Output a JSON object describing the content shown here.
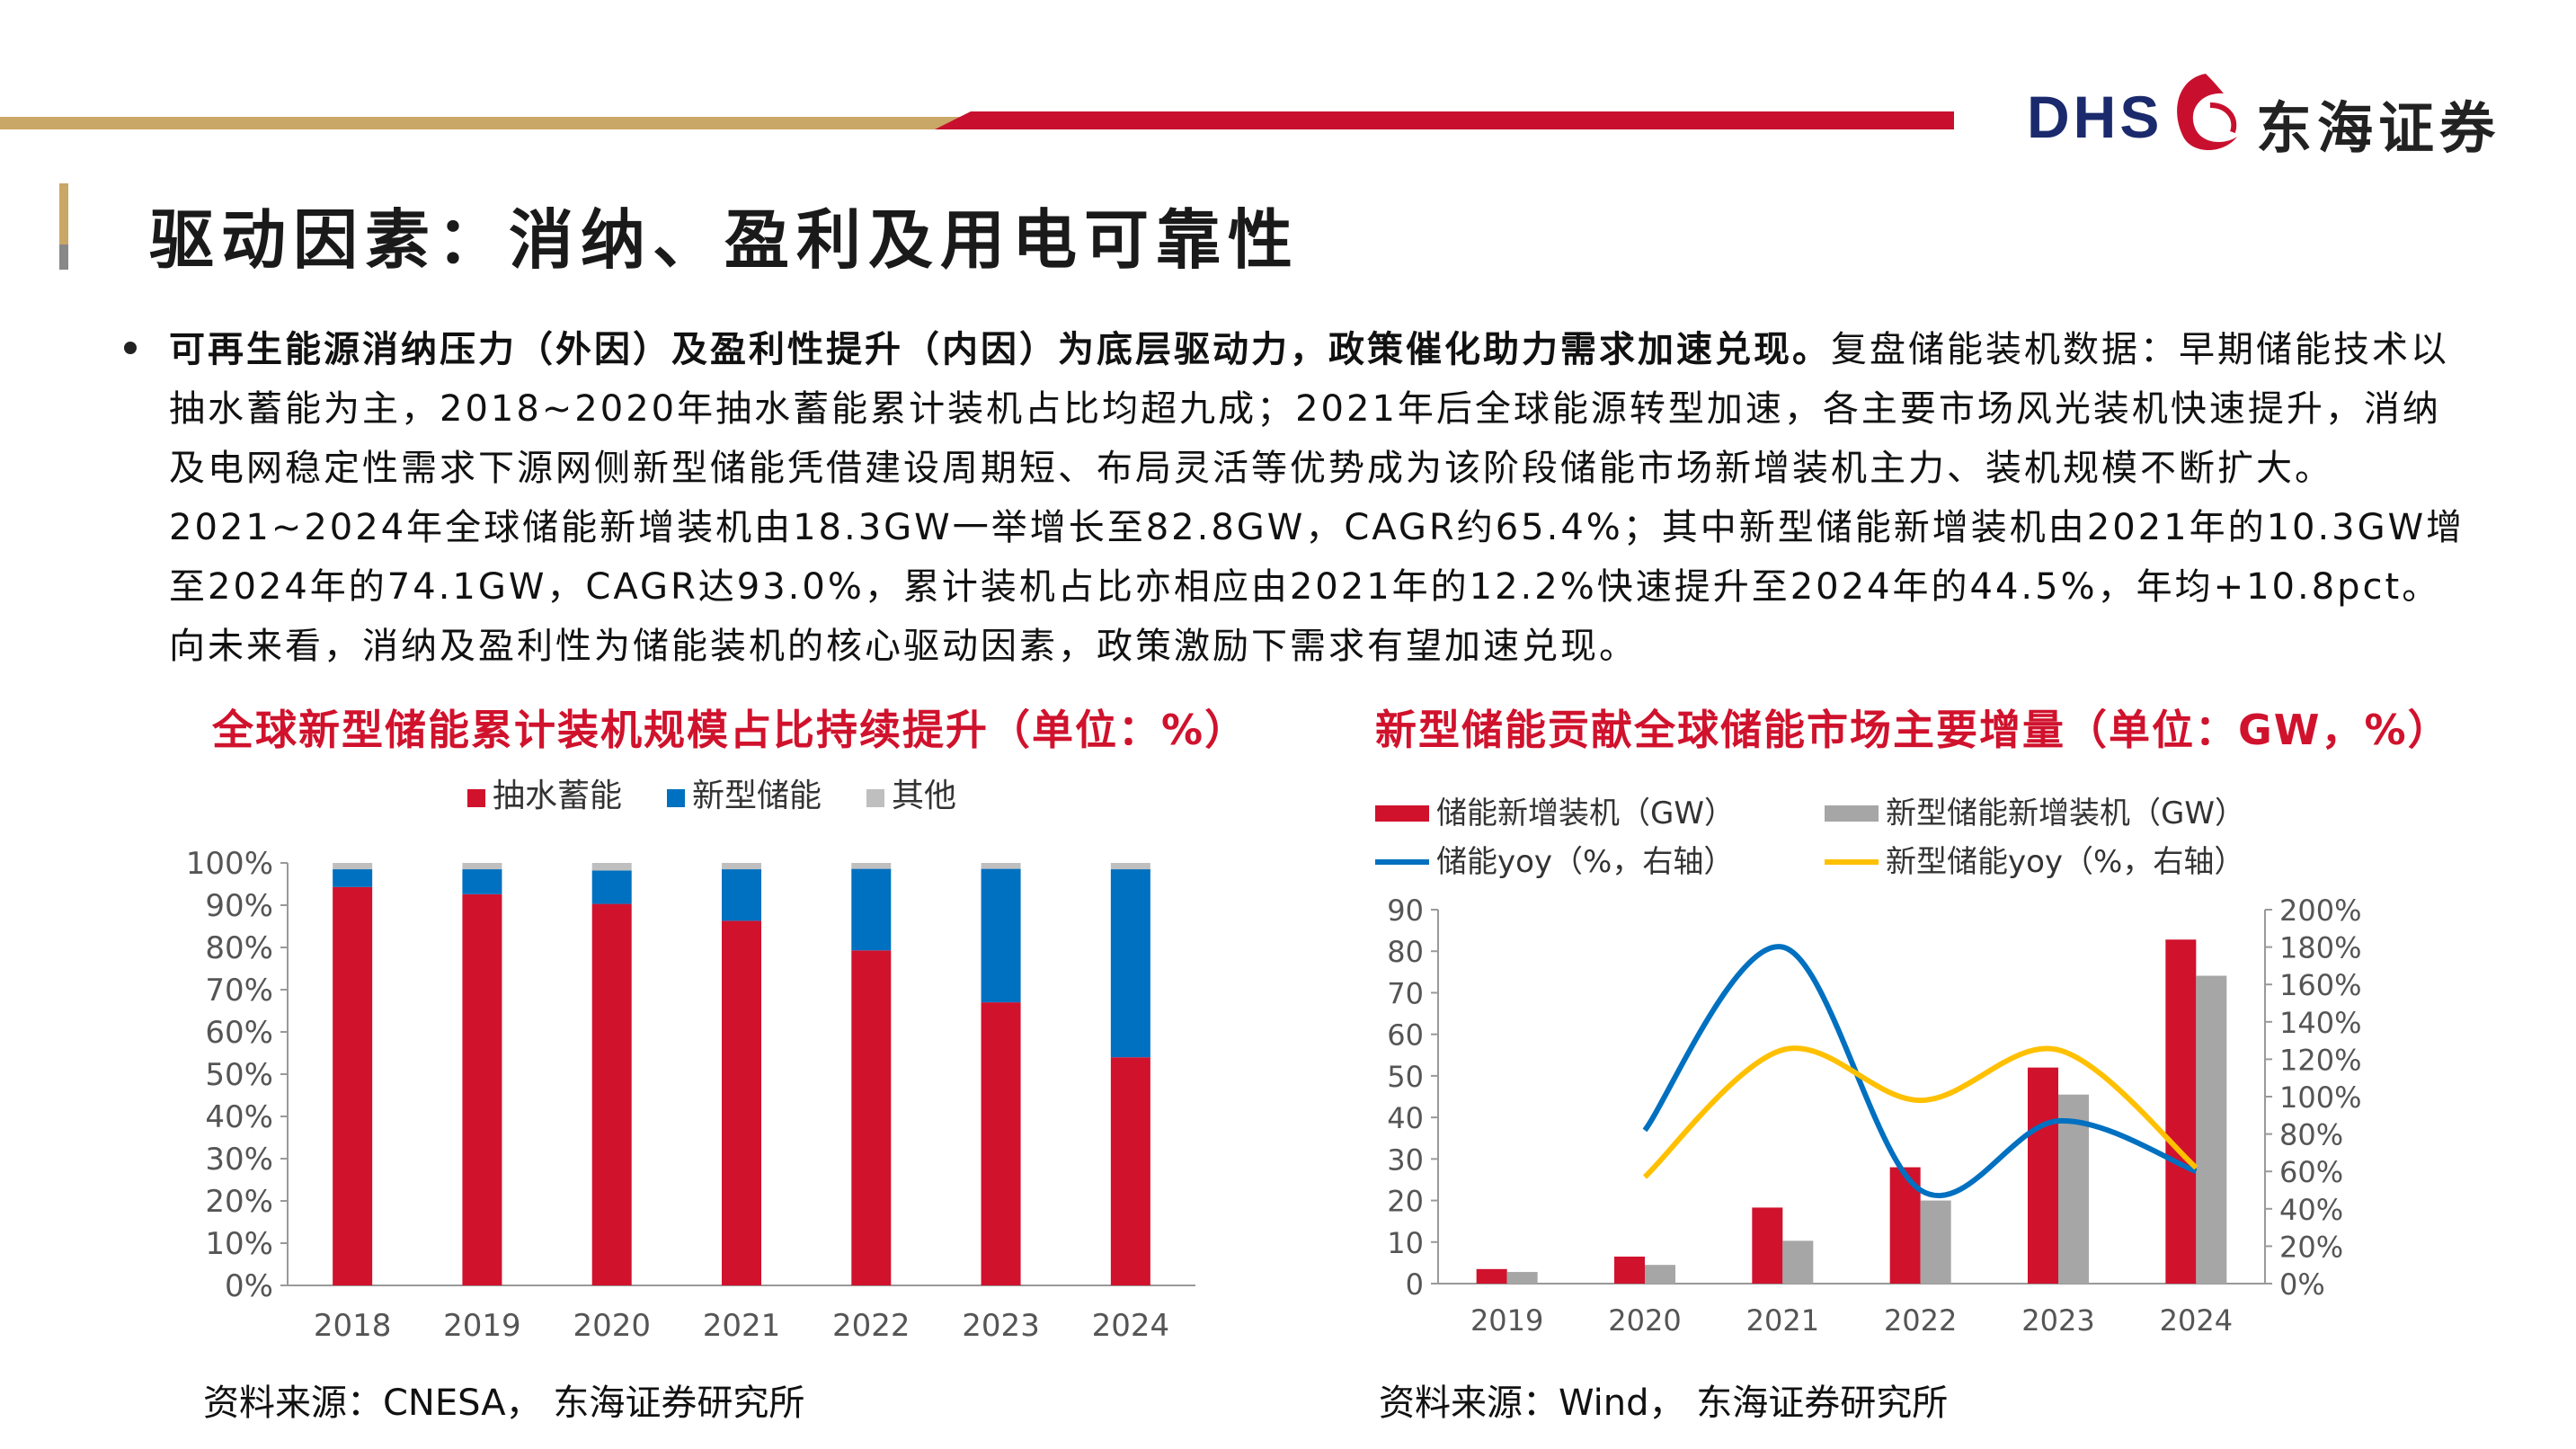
{
  "brand": {
    "logo_latin": "DHS",
    "logo_cn": "东海证券"
  },
  "page_title": "驱动因素：消纳、盈利及用电可靠性",
  "body": {
    "bold_lead": "可再生能源消纳压力（外因）及盈利性提升（内因）为底层驱动力，政策催化助力需求加速兑现。",
    "text": "复盘储能装机数据：早期储能技术以抽水蓄能为主，2018~2020年抽水蓄能累计装机占比均超九成；2021年后全球能源转型加速，各主要市场风光装机快速提升，消纳及电网稳定性需求下源网侧新型储能凭借建设周期短、布局灵活等优势成为该阶段储能市场新增装机主力、装机规模不断扩大。2021~2024年全球储能新增装机由18.3GW一举增长至82.8GW，CAGR约65.4%；其中新型储能新增装机由2021年的10.3GW增至2024年的74.1GW，CAGR达93.0%，累计装机占比亦相应由2021年的12.2%快速提升至2024年的44.5%，年均+10.8pct。向未来看，消纳及盈利性为储能装机的核心驱动因素，政策激励下需求有望加速兑现。"
  },
  "chart1": {
    "title": "全球新型储能累计装机规模占比持续提升（单位：%）",
    "source": "资料来源：CNESA， 东海证券研究所"
  },
  "chart2": {
    "title": "新型储能贡献全球储能市场主要增量（单位：GW，%）",
    "source": "资料来源：Wind， 东海证券研究所"
  },
  "chart_data": [
    {
      "type": "bar",
      "stacked": true,
      "categories": [
        "2018",
        "2019",
        "2020",
        "2021",
        "2022",
        "2023",
        "2024"
      ],
      "series": [
        {
          "name": "抽水蓄能",
          "color": "#d0122d",
          "values": [
            94.3,
            92.6,
            90.3,
            86.3,
            79.3,
            67.0,
            54.0
          ]
        },
        {
          "name": "新型储能",
          "color": "#0070c0",
          "values": [
            4.2,
            5.9,
            7.9,
            12.2,
            19.3,
            31.6,
            44.5
          ]
        },
        {
          "name": "其他",
          "color": "#bfbfbf",
          "values": [
            1.5,
            1.5,
            1.8,
            1.5,
            1.4,
            1.4,
            1.5
          ]
        }
      ],
      "ylim": [
        0,
        100
      ],
      "yticks": [
        "0%",
        "10%",
        "20%",
        "30%",
        "40%",
        "50%",
        "60%",
        "70%",
        "80%",
        "90%",
        "100%"
      ],
      "legend": "top"
    },
    {
      "type": "bar+line",
      "categories": [
        "2019",
        "2020",
        "2021",
        "2022",
        "2023",
        "2024"
      ],
      "bars": [
        {
          "name": "储能新增装机（GW）",
          "color": "#d0122d",
          "values": [
            3.5,
            6.5,
            18.3,
            28.0,
            52.0,
            82.8
          ]
        },
        {
          "name": "新型储能新增装机（GW）",
          "color": "#a6a6a6",
          "values": [
            2.8,
            4.5,
            10.3,
            20.0,
            45.5,
            74.1
          ]
        }
      ],
      "lines": [
        {
          "name": "储能yoy（%，右轴）",
          "color": "#0070c0",
          "values": [
            null,
            82,
            180,
            50,
            87,
            60
          ]
        },
        {
          "name": "新型储能yoy（%，右轴）",
          "color": "#ffc000",
          "values": [
            null,
            57,
            125,
            98,
            125,
            62
          ]
        }
      ],
      "ylim_left": [
        0,
        90
      ],
      "yticks_left": [
        "0",
        "10",
        "20",
        "30",
        "40",
        "50",
        "60",
        "70",
        "80",
        "90"
      ],
      "ylim_right": [
        0,
        200
      ],
      "yticks_right": [
        "0%",
        "20%",
        "40%",
        "60%",
        "80%",
        "100%",
        "120%",
        "140%",
        "160%",
        "180%",
        "200%"
      ],
      "legend": "top"
    }
  ]
}
